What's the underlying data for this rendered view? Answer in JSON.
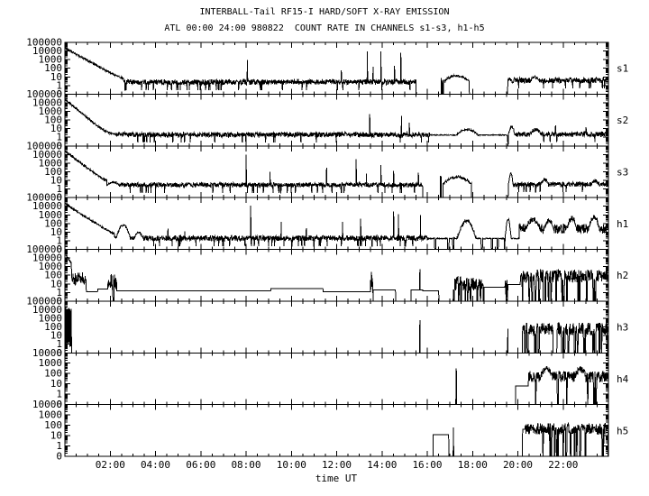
{
  "header": {
    "title": "INTERBALL-Tail RF15-I HARD/SOFT X-RAY EMISSION",
    "subtitle": "ATL 00:00 24:00 980822  COUNT RATE IN CHANNELS s1-s3, h1-h5"
  },
  "chart_data": {
    "type": "line",
    "title": "INTERBALL-Tail RF15-I HARD/SOFT X-RAY EMISSION",
    "subtitle": "ATL 00:00 24:00 980822  COUNT RATE IN CHANNELS s1-s3, h1-h5",
    "xlabel": "time UT",
    "x_range_hours": [
      0,
      24
    ],
    "x_major_tick_hours": 2,
    "x_minor_tick_hours": 0.5,
    "y_scale": "log",
    "grid": false,
    "line_color": "#000000",
    "background": "#ffffff",
    "x_tick_labels": [
      {
        "h": 2,
        "label": "02:00"
      },
      {
        "h": 4,
        "label": "04:00"
      },
      {
        "h": 6,
        "label": "06:00"
      },
      {
        "h": 8,
        "label": "08:00"
      },
      {
        "h": 10,
        "label": "10:00"
      },
      {
        "h": 12,
        "label": "12:00"
      },
      {
        "h": 14,
        "label": "14:00"
      },
      {
        "h": 16,
        "label": "16:00"
      },
      {
        "h": 18,
        "label": "18:00"
      },
      {
        "h": 20,
        "label": "20:00"
      },
      {
        "h": 22,
        "label": "22:00"
      }
    ],
    "panels": [
      {
        "name": "s1",
        "y_labels": [
          "100000",
          "10000",
          "1000",
          "100",
          "10",
          "1",
          "0"
        ],
        "segments": [
          {
            "type": "decay",
            "t0": 0,
            "t1": 2.6,
            "from": 22000,
            "floor": 2.5,
            "tau": 0.3
          },
          {
            "type": "noise",
            "t0": 2.6,
            "t1": 15.5,
            "level": 2.5,
            "spread": 0.3,
            "dip": 0.04
          },
          {
            "type": "spike",
            "t": 8.05,
            "peak": 900
          },
          {
            "type": "spike",
            "t": 12.2,
            "peak": 60
          },
          {
            "type": "spike",
            "t": 13.35,
            "peak": 9000
          },
          {
            "type": "spike",
            "t": 13.6,
            "peak": 150
          },
          {
            "type": "spike",
            "t": 13.95,
            "peak": 9000
          },
          {
            "type": "spike",
            "t": 14.55,
            "peak": 200
          },
          {
            "type": "spike",
            "t": 14.82,
            "peak": 6000
          },
          {
            "type": "gap",
            "t0": 15.5,
            "t1": 16.55
          },
          {
            "type": "burst",
            "t0": 16.57,
            "t1": 16.7,
            "level": 8,
            "spread": 0.5,
            "drop": 0.3,
            "droplen": 2
          },
          {
            "type": "hump",
            "t0": 16.72,
            "t1": 17.85,
            "base": 3,
            "peak": 14,
            "jitter": 0.12
          },
          {
            "type": "gap",
            "t0": 17.85,
            "t1": 19.55
          },
          {
            "type": "noise",
            "t0": 19.55,
            "t1": 24,
            "level": 4,
            "spread": 0.33,
            "dip": 0.05
          },
          {
            "type": "hump",
            "t0": 20.55,
            "t1": 20.95,
            "base": 4,
            "peak": 9,
            "jitter": 0.15
          }
        ]
      },
      {
        "name": "s2",
        "y_labels": [
          "100000",
          "10000",
          "1000",
          "100",
          "10",
          "1",
          "0"
        ],
        "segments": [
          {
            "type": "decay",
            "t0": 0,
            "t1": 2.2,
            "from": 25000,
            "floor": 2,
            "tau": 0.2
          },
          {
            "type": "noise",
            "t0": 2.2,
            "t1": 16.1,
            "level": 2,
            "spread": 0.28,
            "dip": 0.03
          },
          {
            "type": "spike",
            "t": 13.45,
            "peak": 500
          },
          {
            "type": "spike",
            "t": 14.85,
            "peak": 300
          },
          {
            "type": "spike",
            "t": 15.2,
            "peak": 50
          },
          {
            "type": "line",
            "t0": 16.1,
            "t1": 17.25,
            "level": 1.8,
            "spread": 0.05
          },
          {
            "type": "hump",
            "t0": 17.25,
            "t1": 18.25,
            "base": 1.8,
            "peak": 8,
            "jitter": 0.1
          },
          {
            "type": "line",
            "t0": 18.25,
            "t1": 19.55,
            "level": 1.8,
            "spread": 0.05
          },
          {
            "type": "hump",
            "t0": 19.58,
            "t1": 19.85,
            "base": 2,
            "peak": 18,
            "jitter": 0.15
          },
          {
            "type": "noise",
            "t0": 19.85,
            "t1": 24,
            "level": 2.2,
            "spread": 0.28,
            "dip": 0.03
          },
          {
            "type": "hump",
            "t0": 20.55,
            "t1": 21.05,
            "base": 2.2,
            "peak": 8,
            "jitter": 0.2
          },
          {
            "type": "spike",
            "t": 21.65,
            "peak": 25
          },
          {
            "type": "spike",
            "t": 23.0,
            "peak": 15
          }
        ]
      },
      {
        "name": "s3",
        "y_labels": [
          "100000",
          "10000",
          "1000",
          "100",
          "10",
          "1",
          "0"
        ],
        "segments": [
          {
            "type": "decay",
            "t0": 0,
            "t1": 2.3,
            "from": 25000,
            "floor": 3,
            "tau": 0.22
          },
          {
            "type": "hump",
            "t0": 1.85,
            "t1": 2.4,
            "base": 3,
            "peak": 6,
            "jitter": 0.08
          },
          {
            "type": "noise",
            "t0": 2.4,
            "t1": 15.8,
            "level": 3,
            "spread": 0.25,
            "dip": 0.04
          },
          {
            "type": "spike",
            "t": 8.0,
            "peak": 10000
          },
          {
            "type": "spike",
            "t": 9.05,
            "peak": 100
          },
          {
            "type": "spike",
            "t": 11.55,
            "peak": 300
          },
          {
            "type": "spike",
            "t": 12.85,
            "peak": 3000
          },
          {
            "type": "spike",
            "t": 13.3,
            "peak": 60
          },
          {
            "type": "spike",
            "t": 13.95,
            "peak": 600
          },
          {
            "type": "spike",
            "t": 14.5,
            "peak": 120
          },
          {
            "type": "spike",
            "t": 15.6,
            "peak": 80
          },
          {
            "type": "gap",
            "t0": 15.8,
            "t1": 16.55
          },
          {
            "type": "burst",
            "t0": 16.57,
            "t1": 16.68,
            "level": 15,
            "spread": 0.4,
            "drop": 0.3,
            "droplen": 2
          },
          {
            "type": "hump",
            "t0": 16.7,
            "t1": 17.95,
            "base": 4,
            "peak": 25,
            "jitter": 0.15
          },
          {
            "type": "gap",
            "t0": 17.95,
            "t1": 19.55
          },
          {
            "type": "hump",
            "t0": 19.57,
            "t1": 19.78,
            "base": 3,
            "peak": 60,
            "jitter": 0.15
          },
          {
            "type": "noise",
            "t0": 19.78,
            "t1": 24,
            "level": 3.5,
            "spread": 0.28,
            "dip": 0.04
          },
          {
            "type": "hump",
            "t0": 21.0,
            "t1": 21.35,
            "base": 3.5,
            "peak": 12,
            "jitter": 0.2
          },
          {
            "type": "hump",
            "t0": 23.25,
            "t1": 23.55,
            "base": 3.5,
            "peak": 9,
            "jitter": 0.2
          }
        ]
      },
      {
        "name": "h1",
        "y_labels": [
          "100000",
          "10000",
          "1000",
          "100",
          "10",
          "1",
          "0"
        ],
        "segments": [
          {
            "type": "decay",
            "t0": 0,
            "t1": 2.2,
            "from": 20000,
            "floor": 2,
            "tau": 0.26
          },
          {
            "type": "noise",
            "t0": 2.2,
            "t1": 16.0,
            "level": 2,
            "spread": 0.3,
            "dip": 0.03
          },
          {
            "type": "hump",
            "t0": 2.25,
            "t1": 2.9,
            "base": 2,
            "peak": 70,
            "jitter": 0.12
          },
          {
            "type": "hump",
            "t0": 3.05,
            "t1": 3.45,
            "base": 2,
            "peak": 9,
            "jitter": 0.1
          },
          {
            "type": "spike",
            "t": 4.55,
            "peak": 25
          },
          {
            "type": "spike",
            "t": 5.3,
            "peak": 12
          },
          {
            "type": "spike",
            "t": 8.2,
            "peak": 12000
          },
          {
            "type": "spike",
            "t": 9.55,
            "peak": 150
          },
          {
            "type": "spike",
            "t": 10.65,
            "peak": 30
          },
          {
            "type": "spike",
            "t": 12.25,
            "peak": 150
          },
          {
            "type": "spike",
            "t": 13.05,
            "peak": 350
          },
          {
            "type": "spike",
            "t": 14.5,
            "peak": 2500
          },
          {
            "type": "spike",
            "t": 14.72,
            "peak": 1200
          },
          {
            "type": "spike",
            "t": 15.7,
            "peak": 1000
          },
          {
            "type": "line",
            "t0": 16.0,
            "t1": 17.3,
            "level": 1.8,
            "spread": 0.05
          },
          {
            "type": "gap",
            "t0": 16.32,
            "t1": 16.38
          },
          {
            "type": "gap",
            "t0": 16.9,
            "t1": 16.96
          },
          {
            "type": "gap",
            "t0": 17.12,
            "t1": 17.17
          },
          {
            "type": "hump",
            "t0": 17.3,
            "t1": 18.15,
            "base": 2,
            "peak": 200,
            "jitter": 0.18
          },
          {
            "type": "line",
            "t0": 18.15,
            "t1": 19.4,
            "level": 1.8,
            "spread": 0.05
          },
          {
            "type": "gap",
            "t0": 18.38,
            "t1": 18.44
          },
          {
            "type": "gap",
            "t0": 18.82,
            "t1": 18.88
          },
          {
            "type": "gap",
            "t0": 19.08,
            "t1": 19.13
          },
          {
            "type": "hump",
            "t0": 19.42,
            "t1": 19.7,
            "base": 2,
            "peak": 350,
            "jitter": 0.15
          },
          {
            "type": "line",
            "t0": 19.7,
            "t1": 20.05,
            "level": 1.8,
            "spread": 0.05
          },
          {
            "type": "burst",
            "t0": 20.05,
            "t1": 24,
            "level": 25,
            "spread": 0.55,
            "drop": 0.012,
            "droplen": 2
          },
          {
            "type": "hump",
            "t0": 20.3,
            "t1": 21.0,
            "base": 20,
            "peak": 250,
            "jitter": 0.3
          },
          {
            "type": "hump",
            "t0": 21.15,
            "t1": 21.6,
            "base": 20,
            "peak": 200,
            "jitter": 0.3
          },
          {
            "type": "hump",
            "t0": 22.15,
            "t1": 22.6,
            "base": 20,
            "peak": 400,
            "jitter": 0.3
          },
          {
            "type": "hump",
            "t0": 23.1,
            "t1": 23.6,
            "base": 25,
            "peak": 500,
            "jitter": 0.3
          }
        ]
      },
      {
        "name": "h2",
        "y_labels": [
          "100000",
          "10000",
          "1000",
          "100",
          "10",
          "1",
          "0"
        ],
        "segments": [
          {
            "type": "decay",
            "t0": 0,
            "t1": 0.6,
            "from": 30000,
            "floor": 40,
            "tau": 0.12
          },
          {
            "type": "burst",
            "t0": 0.3,
            "t1": 0.95,
            "level": 40,
            "spread": 0.8,
            "drop": 0.05,
            "droplen": 1
          },
          {
            "type": "step",
            "t0": 0.95,
            "t1": 1.45,
            "level": 1.2
          },
          {
            "type": "step",
            "t0": 1.45,
            "t1": 1.9,
            "level": 2.5
          },
          {
            "type": "burst",
            "t0": 1.9,
            "t1": 2.3,
            "level": 15,
            "spread": 1.0,
            "drop": 0.15,
            "droplen": 1
          },
          {
            "type": "step",
            "t0": 2.3,
            "t1": 9.1,
            "level": 1.6
          },
          {
            "type": "step",
            "t0": 9.1,
            "t1": 11.4,
            "level": 2.8
          },
          {
            "type": "step",
            "t0": 11.4,
            "t1": 13.5,
            "level": 1.2
          },
          {
            "type": "burst",
            "t0": 13.5,
            "t1": 13.62,
            "level": 15,
            "spread": 0.9,
            "drop": 0.2,
            "droplen": 1
          },
          {
            "type": "spike",
            "t": 13.53,
            "peak": 250
          },
          {
            "type": "step",
            "t0": 13.62,
            "t1": 14.6,
            "level": 2
          },
          {
            "type": "gap",
            "t0": 14.6,
            "t1": 15.28
          },
          {
            "type": "step",
            "t0": 15.28,
            "t1": 15.8,
            "level": 2
          },
          {
            "type": "spike",
            "t": 15.67,
            "peak": 500
          },
          {
            "type": "step",
            "t0": 15.8,
            "t1": 16.5,
            "level": 1.5
          },
          {
            "type": "gap",
            "t0": 16.5,
            "t1": 17.15
          },
          {
            "type": "burst",
            "t0": 17.15,
            "t1": 18.5,
            "level": 10,
            "spread": 0.85,
            "drop": 0.12,
            "droplen": 2
          },
          {
            "type": "step",
            "t0": 18.5,
            "t1": 19.42,
            "level": 4
          },
          {
            "type": "burst",
            "t0": 19.42,
            "t1": 19.55,
            "level": 30,
            "spread": 0.7,
            "drop": 0.2,
            "droplen": 1
          },
          {
            "type": "step",
            "t0": 19.55,
            "t1": 20.1,
            "level": 8
          },
          {
            "type": "burst",
            "t0": 20.1,
            "t1": 24,
            "level": 80,
            "spread": 0.75,
            "drop": 0.05,
            "droplen": 3
          }
        ]
      },
      {
        "name": "h3",
        "y_labels": [
          "100000",
          "10000",
          "1000",
          "100",
          "10",
          "1",
          "0"
        ],
        "segments": [
          {
            "type": "blob",
            "t0": 0,
            "t1": 0.3,
            "lo": 0.5,
            "hi": 20000
          },
          {
            "type": "spike",
            "t": 15.66,
            "peak": 600
          },
          {
            "type": "spike",
            "t": 19.55,
            "peak": 60
          },
          {
            "type": "burst",
            "t0": 20.2,
            "t1": 21.55,
            "level": 60,
            "spread": 0.7,
            "drop": 0.05,
            "droplen": 3
          },
          {
            "type": "gap",
            "t0": 21.55,
            "t1": 21.72
          },
          {
            "type": "burst",
            "t0": 21.72,
            "t1": 23.95,
            "level": 60,
            "spread": 0.75,
            "drop": 0.09,
            "droplen": 4
          }
        ]
      },
      {
        "name": "h4",
        "y_labels": [
          "10000",
          "1000",
          "100",
          "10",
          "1",
          "0"
        ],
        "segments": [
          {
            "type": "spike",
            "t": 17.27,
            "peak": 300,
            "wide": true
          },
          {
            "type": "step",
            "t0": 19.9,
            "t1": 20.45,
            "level": 6
          },
          {
            "type": "burst",
            "t0": 20.45,
            "t1": 24,
            "level": 50,
            "spread": 0.55,
            "drop": 0.04,
            "droplen": 3
          },
          {
            "type": "hump",
            "t0": 21.0,
            "t1": 21.5,
            "base": 60,
            "peak": 300,
            "jitter": 0.3
          },
          {
            "type": "hump",
            "t0": 22.5,
            "t1": 23.0,
            "base": 60,
            "peak": 250,
            "jitter": 0.3
          }
        ]
      },
      {
        "name": "h5",
        "y_labels": [
          "10000",
          "1000",
          "100",
          "10",
          "1",
          "0"
        ],
        "segments": [
          {
            "type": "step",
            "t0": 16.25,
            "t1": 16.95,
            "level": 12
          },
          {
            "type": "spike",
            "t": 17.15,
            "peak": 60
          },
          {
            "type": "step",
            "t0": 20.2,
            "t1": 20.32,
            "level": 40
          },
          {
            "type": "burst",
            "t0": 20.32,
            "t1": 23.9,
            "level": 45,
            "spread": 0.55,
            "drop": 0.05,
            "droplen": 3
          },
          {
            "type": "step",
            "t0": 23.9,
            "t1": 23.97,
            "level": 30
          }
        ]
      }
    ]
  }
}
